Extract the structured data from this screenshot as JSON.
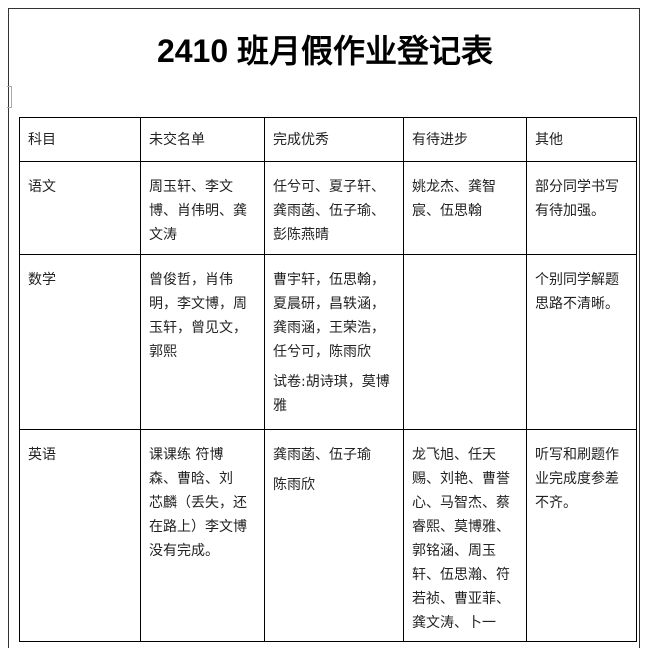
{
  "title": "2410 班月假作业登记表",
  "table": {
    "headers": [
      "科目",
      "未交名单",
      "完成优秀",
      "有待进步",
      "其他"
    ],
    "rows": [
      {
        "subject": "语文",
        "cells": [
          [
            [
              "周玉轩、李文",
              "博、肖伟明、龚",
              "文涛"
            ]
          ],
          [
            [
              "任兮可、夏子轩、",
              "龚雨菡、伍子瑜、",
              "彭陈燕晴"
            ]
          ],
          [
            [
              "姚龙杰、龚智",
              "宸、伍思翰"
            ]
          ],
          [
            [
              "部分同学书写",
              "有待加强。"
            ]
          ]
        ]
      },
      {
        "subject": "数学",
        "cells": [
          [
            [
              "曾俊哲，肖伟",
              "明，李文博，周",
              "玉轩，曾见文，",
              "郭熙"
            ]
          ],
          [
            [
              "曹宇轩，伍思翰，",
              "夏晨研，昌轶涵，",
              "龚雨涵，王荣浩，",
              "任兮可，陈雨欣"
            ],
            [
              "试卷:胡诗琪，莫博",
              "雅"
            ]
          ],
          [],
          [
            [
              "个别同学解题",
              "思路不清晰。"
            ]
          ]
        ]
      },
      {
        "subject": "英语",
        "cells": [
          [
            [
              "课课练 符博",
              "森、曹晗、刘",
              "芯麟（丢失，还",
              "在路上）李文博",
              "没有完成。"
            ]
          ],
          [
            [
              "龚雨菡、伍子瑜"
            ],
            [
              "陈雨欣"
            ]
          ],
          [
            [
              "龙飞旭、任天",
              "赐、刘艳、曹誉",
              "心、马智杰、蔡",
              "睿熙、莫博雅、",
              "郭铭涵、周玉",
              "轩、伍思瀚、符",
              "若祯、曹亚菲、",
              "龚文涛、卜一"
            ]
          ],
          [
            [
              "听写和刷题作",
              "业完成度参差",
              "不齐。"
            ]
          ]
        ]
      }
    ]
  }
}
